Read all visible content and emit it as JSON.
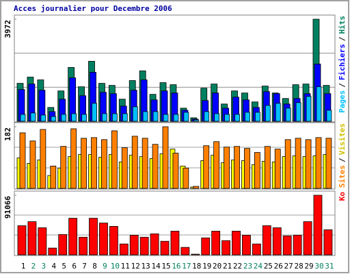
{
  "chart_data": [
    {
      "type": "bar",
      "title": "Acces journalier pour Decembre 2006",
      "ylim": [
        0,
        3972
      ],
      "yticks": [
        3972
      ],
      "grid": true,
      "legend_separator": "/",
      "series": [
        {
          "name": "Pages",
          "color": "#00c0ff",
          "values": [
            268,
            322,
            242,
            188,
            268,
            295,
            268,
            698,
            295,
            295,
            295,
            564,
            376,
            376,
            268,
            268,
            349,
            54,
            376,
            295,
            268,
            268,
            349,
            349,
            617,
            698,
            510,
            725,
            966,
            1342,
            429
          ]
        },
        {
          "name": "Fichiers",
          "color": "#0000ff",
          "values": [
            1235,
            1449,
            1208,
            376,
            859,
            1691,
            993,
            1906,
            1127,
            1074,
            590,
            1208,
            1610,
            832,
            1181,
            1100,
            429,
            81,
            805,
            1100,
            510,
            939,
            832,
            537,
            1154,
            1074,
            671,
            886,
            1074,
            2228,
            1074
          ]
        },
        {
          "name": "Hits",
          "color": "#008060",
          "values": [
            1476,
            1718,
            1610,
            537,
            1181,
            2094,
            1342,
            2335,
            1476,
            1396,
            859,
            1584,
            1960,
            1047,
            1503,
            1423,
            510,
            134,
            1288,
            1449,
            671,
            1181,
            1100,
            752,
            1369,
            1100,
            886,
            1423,
            1449,
            3972,
            1396
          ]
        }
      ]
    },
    {
      "type": "bar",
      "ylim": [
        0,
        182
      ],
      "yticks": [
        182
      ],
      "grid": true,
      "legend_separator": "/",
      "series": [
        {
          "name": "Sites",
          "color": "#ff8000",
          "values": [
            164,
            140,
            174,
            66,
            124,
            176,
            148,
            150,
            144,
            170,
            120,
            154,
            148,
            130,
            182,
            104,
            60,
            6,
            126,
            138,
            122,
            124,
            118,
            106,
            124,
            116,
            144,
            148,
            144,
            150,
            148
          ]
        },
        {
          "name": "Visites",
          "color": "#ffff00",
          "values": [
            90,
            74,
            84,
            38,
            60,
            94,
            100,
            100,
            92,
            100,
            78,
            98,
            94,
            88,
            102,
            116,
            66,
            4,
            82,
            98,
            76,
            84,
            82,
            70,
            80,
            78,
            94,
            96,
            94,
            96,
            100
          ]
        }
      ]
    },
    {
      "type": "bar",
      "ylim": [
        0,
        91066
      ],
      "yticks": [
        91066
      ],
      "grid": true,
      "categories": [
        "1",
        "2",
        "3",
        "4",
        "5",
        "6",
        "7",
        "8",
        "9",
        "10",
        "11",
        "12",
        "13",
        "14",
        "15",
        "16",
        "17",
        "18",
        "19",
        "20",
        "21",
        "22",
        "23",
        "24",
        "25",
        "26",
        "27",
        "28",
        "29",
        "30",
        "31"
      ],
      "category_colors": [
        "#000000",
        "#008060",
        "#008060",
        "#000000",
        "#000000",
        "#000000",
        "#000000",
        "#000000",
        "#008060",
        "#008060",
        "#000000",
        "#000000",
        "#000000",
        "#000000",
        "#000000",
        "#008060",
        "#008060",
        "#000000",
        "#000000",
        "#000000",
        "#000000",
        "#000000",
        "#008060",
        "#008060",
        "#000000",
        "#000000",
        "#000000",
        "#000000",
        "#000000",
        "#008060",
        "#008060"
      ],
      "series": [
        {
          "name": "Ko",
          "color": "#ff0000",
          "values": [
            44500,
            50700,
            41400,
            10350,
            31000,
            55900,
            26900,
            55900,
            48600,
            43500,
            16600,
            30000,
            26900,
            32100,
            20700,
            36200,
            11400,
            1000,
            25900,
            36200,
            21700,
            36200,
            30000,
            16600,
            44500,
            41400,
            29000,
            30000,
            50700,
            91066,
            38300
          ]
        }
      ]
    }
  ]
}
